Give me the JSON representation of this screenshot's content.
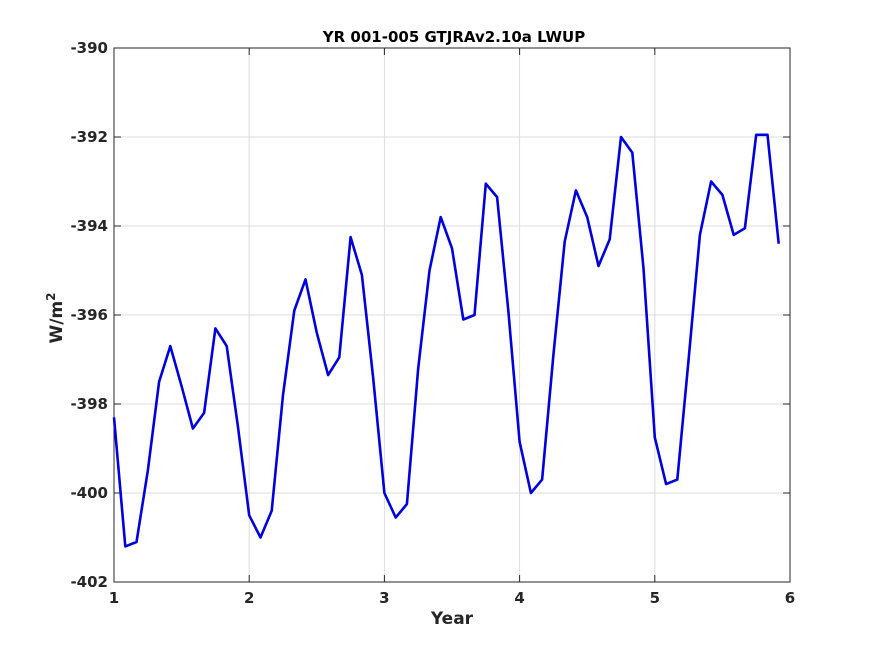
{
  "chart_data": {
    "type": "line",
    "title": "YR 001-005 GTJRAv2.10a LWUP",
    "xlabel": "Year",
    "ylabel_base": "W/m",
    "ylabel_sup": "2",
    "xlim": [
      1,
      6
    ],
    "ylim": [
      -402,
      -390
    ],
    "xticks": [
      1,
      2,
      3,
      4,
      5,
      6
    ],
    "yticks": [
      -402,
      -400,
      -398,
      -396,
      -394,
      -392,
      -390
    ],
    "grid": true,
    "line_color": "#0000dd",
    "series": [
      {
        "x": [
          1.0,
          1.0833,
          1.1667,
          1.25,
          1.3333,
          1.4167,
          1.5,
          1.5833,
          1.6667,
          1.75,
          1.8333,
          1.9167,
          2.0,
          2.0833,
          2.1667,
          2.25,
          2.3333,
          2.4167,
          2.5,
          2.5833,
          2.6667,
          2.75,
          2.8333,
          2.9167,
          3.0,
          3.0833,
          3.1667,
          3.25,
          3.3333,
          3.4167,
          3.5,
          3.5833,
          3.6667,
          3.75,
          3.8333,
          3.9167,
          4.0,
          4.0833,
          4.1667,
          4.25,
          4.3333,
          4.4167,
          4.5,
          4.5833,
          4.6667,
          4.75,
          4.8333,
          4.9167,
          5.0,
          5.0833,
          5.1667,
          5.25,
          5.3333,
          5.4167,
          5.5,
          5.5833,
          5.6667,
          5.75,
          5.8333,
          5.9167
        ],
        "y": [
          -398.3,
          -401.2,
          -401.1,
          -399.5,
          -397.5,
          -396.7,
          -397.6,
          -398.55,
          -398.2,
          -396.3,
          -396.7,
          -398.5,
          -400.5,
          -401.0,
          -400.4,
          -397.8,
          -395.9,
          -395.2,
          -396.4,
          -397.35,
          -396.95,
          -394.25,
          -395.1,
          -397.4,
          -400.0,
          -400.55,
          -400.25,
          -397.2,
          -395.0,
          -393.8,
          -394.5,
          -396.1,
          -396.0,
          -393.05,
          -393.35,
          -395.9,
          -398.85,
          -400.0,
          -399.7,
          -396.9,
          -394.35,
          -393.2,
          -393.8,
          -394.9,
          -394.3,
          -392.0,
          -392.35,
          -394.95,
          -398.75,
          -399.8,
          -399.7,
          -397.0,
          -394.2,
          -393.0,
          -393.3,
          -394.2,
          -394.05,
          -391.95,
          -391.95,
          -394.4
        ]
      }
    ]
  }
}
